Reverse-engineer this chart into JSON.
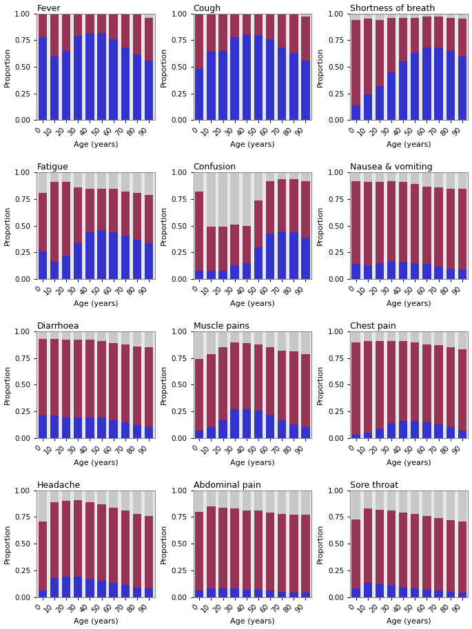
{
  "titles": [
    "Fever",
    "Cough",
    "Shortness of breath",
    "Fatigue",
    "Confusion",
    "Nausea & vomiting",
    "Diarrhoea",
    "Muscle pains",
    "Chest pain",
    "Headache",
    "Abdominal pain",
    "Sore throat"
  ],
  "age_labels": [
    "0",
    "10",
    "20",
    "30",
    "40",
    "50",
    "60",
    "70",
    "80",
    "90"
  ],
  "blue_data": {
    "Fever": [
      0.78,
      0.6,
      0.65,
      0.79,
      0.82,
      0.82,
      0.76,
      0.68,
      0.62,
      0.56
    ],
    "Cough": [
      0.48,
      0.64,
      0.65,
      0.78,
      0.8,
      0.8,
      0.76,
      0.68,
      0.63,
      0.56
    ],
    "Shortness of breath": [
      0.14,
      0.24,
      0.32,
      0.45,
      0.55,
      0.63,
      0.68,
      0.68,
      0.65,
      0.6
    ],
    "Fatigue": [
      0.26,
      0.16,
      0.22,
      0.34,
      0.44,
      0.46,
      0.44,
      0.41,
      0.37,
      0.34
    ],
    "Confusion": [
      0.08,
      0.08,
      0.08,
      0.13,
      0.15,
      0.3,
      0.43,
      0.45,
      0.44,
      0.39
    ],
    "Nausea & vomiting": [
      0.14,
      0.13,
      0.15,
      0.17,
      0.16,
      0.15,
      0.14,
      0.12,
      0.1,
      0.09
    ],
    "Diarrhoea": [
      0.21,
      0.21,
      0.19,
      0.19,
      0.19,
      0.19,
      0.17,
      0.15,
      0.12,
      0.1
    ],
    "Muscle pains": [
      0.07,
      0.1,
      0.17,
      0.27,
      0.27,
      0.26,
      0.22,
      0.17,
      0.13,
      0.1
    ],
    "Chest pain": [
      0.03,
      0.05,
      0.09,
      0.14,
      0.16,
      0.16,
      0.15,
      0.13,
      0.1,
      0.07
    ],
    "Headache": [
      0.06,
      0.18,
      0.19,
      0.19,
      0.17,
      0.15,
      0.13,
      0.11,
      0.09,
      0.08
    ],
    "Abdominal pain": [
      0.06,
      0.08,
      0.08,
      0.08,
      0.07,
      0.07,
      0.06,
      0.05,
      0.04,
      0.04
    ],
    "Sore throat": [
      0.08,
      0.13,
      0.12,
      0.11,
      0.09,
      0.08,
      0.07,
      0.06,
      0.05,
      0.04
    ]
  },
  "rose_top": {
    "Fever": [
      0.99,
      0.99,
      0.99,
      0.99,
      0.99,
      0.99,
      0.99,
      0.99,
      0.99,
      0.96
    ],
    "Cough": [
      0.99,
      0.99,
      0.99,
      0.99,
      0.99,
      0.99,
      0.99,
      0.99,
      0.99,
      0.97
    ],
    "Shortness of breath": [
      0.94,
      0.95,
      0.94,
      0.96,
      0.96,
      0.96,
      0.97,
      0.97,
      0.96,
      0.95
    ],
    "Fatigue": [
      0.81,
      0.91,
      0.91,
      0.86,
      0.85,
      0.85,
      0.85,
      0.82,
      0.81,
      0.79
    ],
    "Confusion": [
      0.82,
      0.49,
      0.49,
      0.51,
      0.5,
      0.74,
      0.92,
      0.94,
      0.94,
      0.92
    ],
    "Nausea & vomiting": [
      0.92,
      0.91,
      0.91,
      0.92,
      0.91,
      0.89,
      0.87,
      0.86,
      0.85,
      0.85
    ],
    "Diarrhoea": [
      0.93,
      0.93,
      0.92,
      0.92,
      0.92,
      0.91,
      0.89,
      0.88,
      0.86,
      0.85
    ],
    "Muscle pains": [
      0.74,
      0.79,
      0.85,
      0.9,
      0.89,
      0.88,
      0.85,
      0.82,
      0.81,
      0.79
    ],
    "Chest pain": [
      0.9,
      0.91,
      0.91,
      0.91,
      0.91,
      0.9,
      0.88,
      0.87,
      0.85,
      0.83
    ],
    "Headache": [
      0.71,
      0.89,
      0.9,
      0.91,
      0.89,
      0.87,
      0.84,
      0.81,
      0.78,
      0.76
    ],
    "Abdominal pain": [
      0.8,
      0.85,
      0.84,
      0.83,
      0.81,
      0.81,
      0.79,
      0.78,
      0.77,
      0.77
    ],
    "Sore throat": [
      0.73,
      0.83,
      0.82,
      0.81,
      0.79,
      0.78,
      0.76,
      0.74,
      0.72,
      0.71
    ]
  },
  "color_blue": "#3333cc",
  "color_rose": "#993355",
  "color_gray": "#c8c8c8",
  "color_bg": "#e8e8e8",
  "color_border": "#aaaaaa",
  "ylabel": "Proportion",
  "xlabel": "Age (years)",
  "ylim": [
    0,
    1.0
  ],
  "yticks": [
    0.0,
    0.25,
    0.5,
    0.75,
    1.0
  ]
}
